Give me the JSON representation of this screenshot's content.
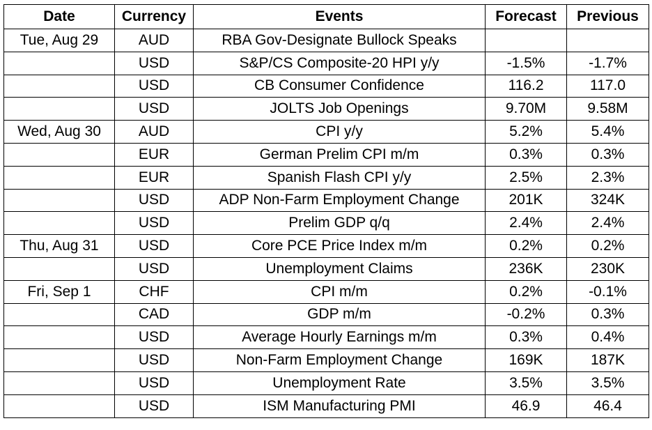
{
  "headers": {
    "date": "Date",
    "currency": "Currency",
    "events": "Events",
    "forecast": "Forecast",
    "previous": "Previous"
  },
  "rows": [
    {
      "date": "Tue, Aug 29",
      "currency": "AUD",
      "event": "RBA Gov-Designate Bullock Speaks",
      "forecast": "",
      "previous": ""
    },
    {
      "date": "",
      "currency": "USD",
      "event": "S&P/CS Composite-20 HPI y/y",
      "forecast": "-1.5%",
      "previous": "-1.7%"
    },
    {
      "date": "",
      "currency": "USD",
      "event": "CB Consumer Confidence",
      "forecast": "116.2",
      "previous": "117.0"
    },
    {
      "date": "",
      "currency": "USD",
      "event": "JOLTS Job Openings",
      "forecast": "9.70M",
      "previous": "9.58M"
    },
    {
      "date": "Wed, Aug 30",
      "currency": "AUD",
      "event": "CPI y/y",
      "forecast": "5.2%",
      "previous": "5.4%"
    },
    {
      "date": "",
      "currency": "EUR",
      "event": "German Prelim CPI m/m",
      "forecast": "0.3%",
      "previous": "0.3%"
    },
    {
      "date": "",
      "currency": "EUR",
      "event": "Spanish Flash CPI y/y",
      "forecast": "2.5%",
      "previous": "2.3%"
    },
    {
      "date": "",
      "currency": "USD",
      "event": "ADP Non-Farm Employment Change",
      "forecast": "201K",
      "previous": "324K"
    },
    {
      "date": "",
      "currency": "USD",
      "event": "Prelim GDP q/q",
      "forecast": "2.4%",
      "previous": "2.4%"
    },
    {
      "date": "Thu, Aug 31",
      "currency": "USD",
      "event": "Core PCE Price Index m/m",
      "forecast": "0.2%",
      "previous": "0.2%"
    },
    {
      "date": "",
      "currency": "USD",
      "event": "Unemployment Claims",
      "forecast": "236K",
      "previous": "230K"
    },
    {
      "date": "Fri, Sep 1",
      "currency": "CHF",
      "event": "CPI m/m",
      "forecast": "0.2%",
      "previous": "-0.1%"
    },
    {
      "date": "",
      "currency": "CAD",
      "event": "GDP m/m",
      "forecast": "-0.2%",
      "previous": "0.3%"
    },
    {
      "date": "",
      "currency": "USD",
      "event": "Average Hourly Earnings m/m",
      "forecast": "0.3%",
      "previous": "0.4%"
    },
    {
      "date": "",
      "currency": "USD",
      "event": "Non-Farm Employment Change",
      "forecast": "169K",
      "previous": "187K"
    },
    {
      "date": "",
      "currency": "USD",
      "event": "Unemployment Rate",
      "forecast": "3.5%",
      "previous": "3.5%"
    },
    {
      "date": "",
      "currency": "USD",
      "event": "ISM Manufacturing PMI",
      "forecast": "46.9",
      "previous": "46.4"
    }
  ]
}
